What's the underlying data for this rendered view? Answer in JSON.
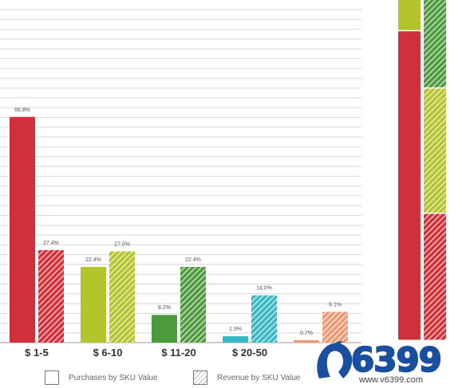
{
  "chart_data": {
    "type": "bar",
    "categories": [
      "$ 1-5",
      "$ 6-10",
      "$ 11-20",
      "$ 20-50",
      ""
    ],
    "series": [
      {
        "name": "Purchases by SKU Value",
        "values": [
          66.8,
          22.4,
          8.2,
          1.9,
          0.7
        ]
      },
      {
        "name": "Revenue by SKU Value",
        "values": [
          27.4,
          27.0,
          22.4,
          14.0,
          9.1
        ]
      }
    ],
    "value_labels": {
      "purchases": [
        "66.8%",
        "22.4%",
        "8.2%",
        "1.9%",
        "0.7%"
      ],
      "revenue": [
        "27.4%",
        "27.0%",
        "22.4%",
        "14.0%",
        "9.1%"
      ]
    },
    "colors": [
      "#d0303a",
      "#b4c42c",
      "#4c9a3c",
      "#38b8c4",
      "#ea9a74"
    ],
    "ylim": [
      0,
      100
    ],
    "grid": true,
    "legend_position": "bottom",
    "stacked_bars": [
      {
        "name": "Purchases by SKU Value",
        "values": [
          66.8,
          22.4,
          8.2,
          1.9,
          0.7
        ]
      },
      {
        "name": "Revenue by SKU Value",
        "values": [
          27.4,
          27.0,
          22.4,
          14.0,
          9.1
        ]
      }
    ]
  },
  "legend": {
    "purchases_label": "Purchases by SKU Value",
    "revenue_label": "Revenue by SKU Value"
  },
  "watermark": {
    "number": "6399",
    "url": "www.v6399.com"
  }
}
